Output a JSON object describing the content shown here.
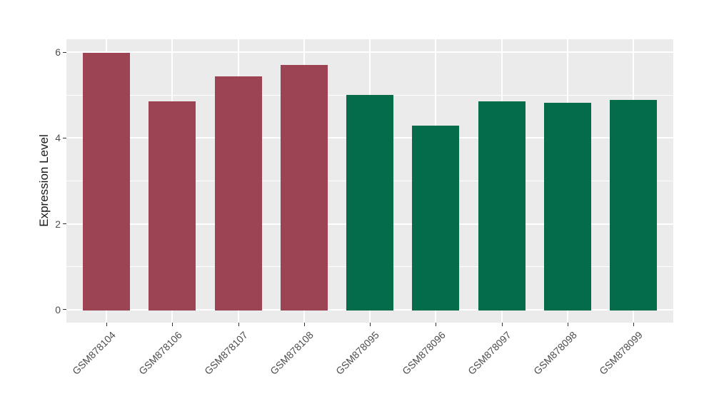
{
  "figure": {
    "background_color": "#ffffff",
    "panel_background_color": "#ebebeb",
    "grid_color": "#ffffff",
    "tick_mark_color": "#333333",
    "tick_label_color": "#4d4d4d",
    "axis_title_color": "#1a1a1a"
  },
  "chart_data": {
    "type": "bar",
    "title": "",
    "xlabel": "",
    "ylabel": "Expression Level",
    "categories": [
      "GSM878104",
      "GSM878106",
      "GSM878107",
      "GSM878108",
      "GSM878095",
      "GSM878096",
      "GSM878097",
      "GSM878098",
      "GSM878099"
    ],
    "values": [
      5.98,
      4.86,
      5.43,
      5.7,
      5.0,
      4.29,
      4.85,
      4.82,
      4.89
    ],
    "bar_colors": [
      "#9c4454",
      "#9c4454",
      "#9c4454",
      "#9c4454",
      "#046b4b",
      "#046b4b",
      "#046b4b",
      "#046b4b",
      "#046b4b"
    ],
    "group_colors": {
      "group1": "#9c4454",
      "group2": "#046b4b"
    },
    "ylim": [
      -0.3,
      6.3
    ],
    "yticks": [
      0,
      2,
      4,
      6
    ],
    "minor_yticks": [
      1,
      3,
      5
    ],
    "grid": true,
    "legend_position": "none",
    "x_tick_label_rotation_deg": 45
  }
}
